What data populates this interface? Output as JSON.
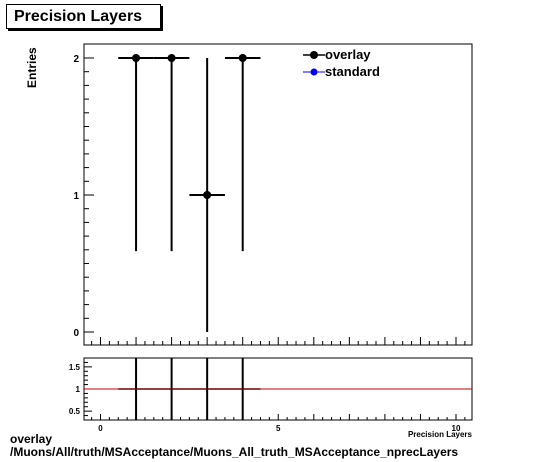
{
  "title": "Precision Layers",
  "footer": {
    "line1": "overlay",
    "line2": "/Muons/All/truth/MSAcceptance/Muons_All_truth_MSAcceptance_nprecLayers"
  },
  "chart_data": [
    {
      "type": "scatter",
      "ylabel": "Entries",
      "xlim": [
        -0.5,
        10.5
      ],
      "ylim": [
        0,
        2
      ],
      "yticks": [
        "0",
        "1",
        "2"
      ],
      "series": [
        {
          "name": "overlay",
          "color": "#000000",
          "points": [
            {
              "x": 1,
              "y": 2,
              "xerr": 0.5,
              "ylo": 0.59,
              "yhi": 2
            },
            {
              "x": 2,
              "y": 2,
              "xerr": 0.5,
              "ylo": 0.59,
              "yhi": 2
            },
            {
              "x": 3,
              "y": 1,
              "xerr": 0.5,
              "ylo": 0.0,
              "yhi": 2
            },
            {
              "x": 4,
              "y": 2,
              "xerr": 0.5,
              "ylo": 0.59,
              "yhi": 2
            }
          ]
        },
        {
          "name": "standard",
          "color": "#0000ff",
          "points": []
        }
      ],
      "legend": "top-right"
    },
    {
      "type": "line",
      "xlabel": "Precision Layers",
      "xlim": [
        -0.5,
        10.5
      ],
      "ylim": [
        0.3,
        1.7
      ],
      "xticks": [
        "0",
        "5",
        "10"
      ],
      "yticks": [
        "0.5",
        "1",
        "1.5"
      ],
      "reference_line": {
        "y": 1,
        "color": "#cc0000"
      },
      "ratio_points": [
        {
          "x": 1,
          "y": 1,
          "xerr": 0.5
        },
        {
          "x": 2,
          "y": 1,
          "xerr": 0.5
        },
        {
          "x": 3,
          "y": 1,
          "xerr": 0.5
        },
        {
          "x": 4,
          "y": 1,
          "xerr": 0.5
        }
      ]
    }
  ]
}
